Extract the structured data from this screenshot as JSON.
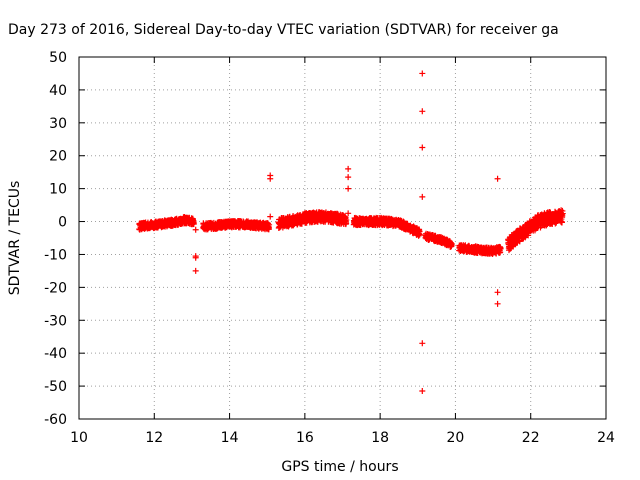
{
  "chart_data": {
    "type": "scatter",
    "title": "Day 273 of 2016, Sidereal Day-to-day VTEC variation (SDTVAR) for receiver ga",
    "xlabel": "GPS time / hours",
    "ylabel": "SDTVAR / TECUs",
    "xlim": [
      10,
      24
    ],
    "ylim": [
      -60,
      50
    ],
    "xticks": [
      10,
      12,
      14,
      16,
      18,
      20,
      22,
      24
    ],
    "yticks": [
      -60,
      -50,
      -40,
      -30,
      -20,
      -10,
      0,
      10,
      20,
      30,
      40,
      50
    ],
    "grid": true,
    "legend": "none",
    "marker": "plus",
    "color": "#ff0000",
    "bands": [
      {
        "x": [
          11.6,
          12.0,
          12.5,
          12.8,
          13.05
        ],
        "y": [
          -1.5,
          -1.0,
          -0.3,
          0.4,
          0.0
        ],
        "spread": 2.0
      },
      {
        "x": [
          13.3,
          13.6,
          14.0,
          14.4,
          14.8,
          15.05
        ],
        "y": [
          -1.5,
          -1.3,
          -0.8,
          -0.8,
          -1.2,
          -1.5
        ],
        "spread": 2.0
      },
      {
        "x": [
          15.3,
          15.6,
          16.0,
          16.4,
          16.8,
          17.1
        ],
        "y": [
          -0.5,
          0.0,
          1.0,
          1.5,
          1.0,
          0.5
        ],
        "spread": 3.0
      },
      {
        "x": [
          17.3,
          17.7,
          18.1,
          18.5,
          18.8,
          19.05
        ],
        "y": [
          0.0,
          0.0,
          0.0,
          -0.5,
          -2.0,
          -3.5
        ],
        "spread": 2.2
      },
      {
        "x": [
          19.2,
          19.6,
          19.9
        ],
        "y": [
          -4.5,
          -5.5,
          -7.0
        ],
        "spread": 1.8
      },
      {
        "x": [
          20.1,
          20.5,
          21.0,
          21.2
        ],
        "y": [
          -8.0,
          -8.5,
          -9.0,
          -8.5
        ],
        "spread": 2.0
      },
      {
        "x": [
          21.4,
          21.6,
          21.9,
          22.2,
          22.5,
          22.85
        ],
        "y": [
          -7.0,
          -5.0,
          -2.5,
          0.0,
          1.0,
          1.5
        ],
        "spread": 4.0
      }
    ],
    "outliers": [
      {
        "x": 13.1,
        "y": -2.5
      },
      {
        "x": 13.1,
        "y": -10.5
      },
      {
        "x": 13.1,
        "y": -11.0
      },
      {
        "x": 13.1,
        "y": -15.0
      },
      {
        "x": 15.08,
        "y": 13.0
      },
      {
        "x": 15.08,
        "y": 14.0
      },
      {
        "x": 15.08,
        "y": 1.5
      },
      {
        "x": 17.15,
        "y": 16.0
      },
      {
        "x": 17.15,
        "y": 13.5
      },
      {
        "x": 17.15,
        "y": 10.0
      },
      {
        "x": 17.15,
        "y": 2.5
      },
      {
        "x": 19.12,
        "y": 45.0
      },
      {
        "x": 19.12,
        "y": 33.5
      },
      {
        "x": 19.12,
        "y": 22.5
      },
      {
        "x": 19.12,
        "y": 7.5
      },
      {
        "x": 19.12,
        "y": -37.0
      },
      {
        "x": 19.12,
        "y": -51.5
      },
      {
        "x": 21.12,
        "y": 13.0
      },
      {
        "x": 21.12,
        "y": -21.5
      },
      {
        "x": 21.12,
        "y": -25.0
      }
    ]
  }
}
